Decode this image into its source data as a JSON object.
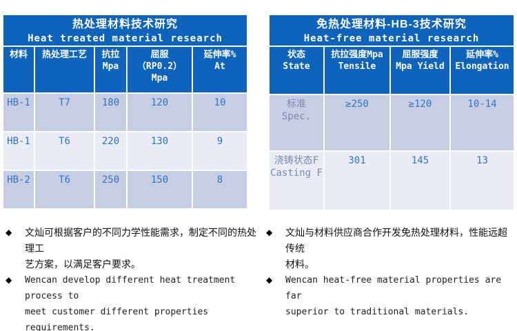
{
  "colors": {
    "header_blue": "#0e63bc",
    "row_dark": "#c7cde3",
    "row_light": "#e9ebf5",
    "value_text_blue": "#2e74c6",
    "label_text_muted": "#7a88b0",
    "gridline_white": "#ffffff"
  },
  "left_table": {
    "title_zh": "热处理材料技术研究",
    "title_en": "Heat treated material research",
    "columns": [
      "材料",
      "热处理工艺",
      "抗拉\nMpa",
      "屈服\n（RP0.2）\nMpa",
      "延伸率%\nAt"
    ],
    "rows": [
      [
        "HB-1",
        "T7",
        "180",
        "120",
        "10"
      ],
      [
        "HB-1",
        "T6",
        "220",
        "130",
        "9"
      ],
      [
        "HB-2",
        "T6",
        "250",
        "150",
        "8"
      ]
    ]
  },
  "right_table": {
    "title_zh": "免热处理材料-HB-3技术研究",
    "title_en": "Heat-free material research",
    "columns": [
      "状态\nState",
      "抗拉强度Mpa\nTensile",
      "屈服强度\nMpa Yield",
      "延伸率%\nElongation"
    ],
    "rows": [
      [
        "标准\nSpec.",
        "≥250",
        "≥120",
        "10-14"
      ],
      [
        "浇铸状态F\nCasting F",
        "301",
        "145",
        "13"
      ]
    ]
  },
  "notes_left": [
    {
      "bullet": "◆",
      "text": "文灿可根据客户的不同力学性能需求，制定不同的热处理工\n艺方案，以满足客户要求。"
    },
    {
      "bullet": "◆",
      "text": "Wencan develop different heat treatment process to\nmeet customer different properties requirements."
    }
  ],
  "notes_right": [
    {
      "bullet": "◆",
      "text": "文灿与材料供应商合作开发免热处理材料，性能远超传统\n材料。"
    },
    {
      "bullet": "◆",
      "text": "Wencan heat-free material properties are far\nsuperior to traditional materials."
    }
  ]
}
